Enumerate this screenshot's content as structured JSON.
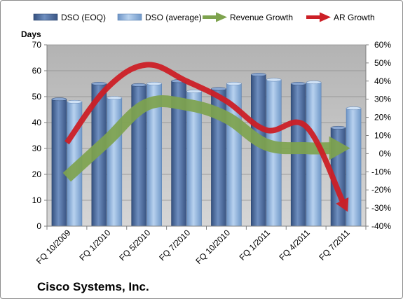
{
  "company": "Cisco Systems, Inc.",
  "colors": {
    "dso_eoq": "#4f6e9f",
    "dso_average": "#8fb3dd",
    "revenue_growth": "#7ea34e",
    "ar_growth": "#cc1f26",
    "plot_background": "#c0c0c0"
  },
  "chart_data": {
    "type": "bar",
    "title": "",
    "y_left_label": "Days",
    "y_left_lim": [
      0,
      70
    ],
    "y_left_ticks": [
      "0",
      "10",
      "20",
      "30",
      "40",
      "50",
      "60",
      "70"
    ],
    "y_right_lim": [
      -40,
      60
    ],
    "y_right_ticks": [
      "-40%",
      "-30%",
      "-20%",
      "-10%",
      "0%",
      "10%",
      "20%",
      "30%",
      "40%",
      "50%",
      "60%"
    ],
    "legend_position": "top",
    "grid": true,
    "categories": [
      "FQ 10/2009",
      "FQ 1/2010",
      "FQ 5/2010",
      "FQ 7/2010",
      "FQ 10/2010",
      "FQ 1/2011",
      "FQ 4/2011",
      "FQ 7/2011"
    ],
    "series": [
      {
        "name": "DSO (EOQ)",
        "type": "bar",
        "axis": "left",
        "values": [
          49,
          55,
          54.5,
          56,
          53,
          58.5,
          55,
          38
        ]
      },
      {
        "name": "DSO (average)",
        "type": "bar",
        "axis": "left",
        "values": [
          48,
          49.5,
          55,
          52,
          55,
          56.5,
          55.5,
          45.5
        ]
      },
      {
        "name": "Revenue Growth",
        "type": "line",
        "axis": "right",
        "unit": "%",
        "values": [
          -13,
          7,
          27,
          27,
          20,
          5,
          3,
          3
        ]
      },
      {
        "name": "AR Growth",
        "type": "line",
        "axis": "right",
        "unit": "%",
        "values": [
          6,
          36,
          49,
          40,
          29,
          13,
          15,
          -30
        ]
      }
    ]
  }
}
